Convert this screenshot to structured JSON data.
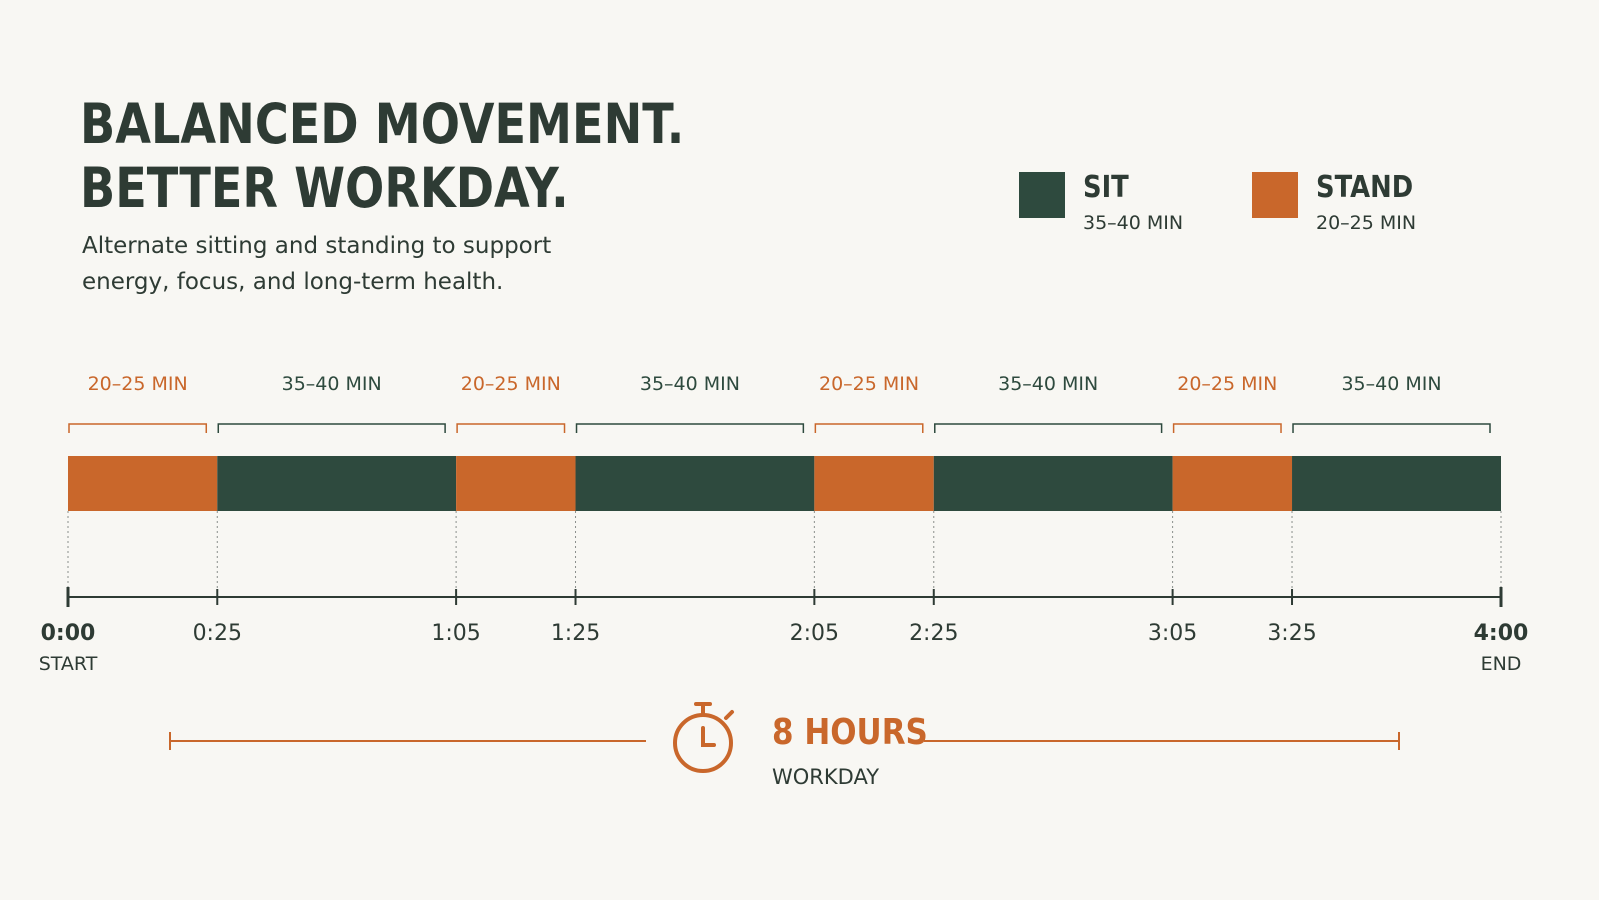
{
  "heading": {
    "line1": "BALANCED MOVEMENT.",
    "line2": "BETTER WORKDAY.",
    "subtitle": "Alternate sitting and standing to support energy, focus, and long-term health."
  },
  "colors": {
    "sit": "#2e4a3e",
    "stand": "#c9672b",
    "text_dark": "#2e3b34",
    "background": "#f8f7f3"
  },
  "legend": [
    {
      "name": "SIT",
      "duration": "35–40 MIN",
      "kind": "sit"
    },
    {
      "name": "STAND",
      "duration": "20–25 MIN",
      "kind": "stand"
    }
  ],
  "chart_data": {
    "type": "timeline",
    "time_range": [
      "0:00",
      "4:00"
    ],
    "segments": [
      {
        "activity": "stand",
        "start": "0:00",
        "end": "0:25",
        "label": "20–25 MIN"
      },
      {
        "activity": "sit",
        "start": "0:25",
        "end": "1:05",
        "label": "35–40 MIN"
      },
      {
        "activity": "stand",
        "start": "1:05",
        "end": "1:25",
        "label": "20–25 MIN"
      },
      {
        "activity": "sit",
        "start": "1:25",
        "end": "2:05",
        "label": "35–40 MIN"
      },
      {
        "activity": "stand",
        "start": "2:05",
        "end": "2:25",
        "label": "20–25 MIN"
      },
      {
        "activity": "sit",
        "start": "2:25",
        "end": "3:05",
        "label": "35–40 MIN"
      },
      {
        "activity": "stand",
        "start": "3:05",
        "end": "3:25",
        "label": "20–25 MIN"
      },
      {
        "activity": "sit",
        "start": "3:25",
        "end": "4:00",
        "label": "35–40 MIN"
      }
    ],
    "ticks": [
      {
        "time": "0:00",
        "label": "0:00",
        "sublabel": "START"
      },
      {
        "time": "0:25",
        "label": "0:25"
      },
      {
        "time": "1:05",
        "label": "1:05"
      },
      {
        "time": "1:25",
        "label": "1:25"
      },
      {
        "time": "2:05",
        "label": "2:05"
      },
      {
        "time": "2:25",
        "label": "2:25"
      },
      {
        "time": "3:05",
        "label": "3:05"
      },
      {
        "time": "3:25",
        "label": "3:25"
      },
      {
        "time": "4:00",
        "label": "4:00",
        "sublabel": "END"
      }
    ]
  },
  "workday": {
    "hours": "8 HOURS",
    "label": "WORKDAY",
    "icon": "stopwatch-icon"
  }
}
